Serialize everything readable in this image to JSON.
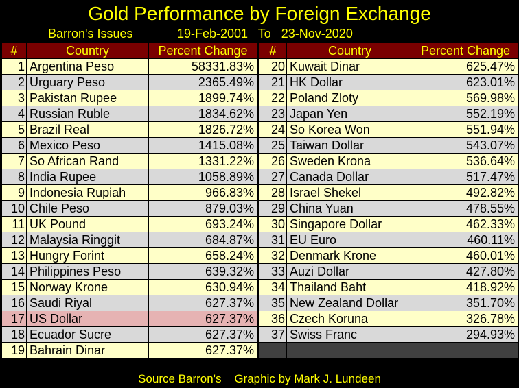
{
  "title": "Gold Performance by Foreign Exchange",
  "subtitle_left": "Barron's Issues",
  "subtitle_right": "19-Feb-2001   To   23-Nov-2020",
  "footer": "Source Barron's    Graphic by Mark J. Lundeen",
  "headers": {
    "num": "#",
    "country": "Country",
    "change": "Percent Change"
  },
  "colors": {
    "background": "#000000",
    "title_text": "#ffff00",
    "header_bg": "#7a0000",
    "row_odd": "#ffffc8",
    "row_even": "#d9d9d9",
    "highlight": "#e6b3b3"
  },
  "left_rows": [
    {
      "num": "1",
      "country": "Argentina Peso",
      "change": "58331.83%"
    },
    {
      "num": "2",
      "country": "Urguary Peso",
      "change": "2365.49%"
    },
    {
      "num": "3",
      "country": "Pakistan Rupee",
      "change": "1899.74%"
    },
    {
      "num": "4",
      "country": "Russian Ruble",
      "change": "1834.62%"
    },
    {
      "num": "5",
      "country": "Brazil Real",
      "change": "1826.72%"
    },
    {
      "num": "6",
      "country": "Mexico Peso",
      "change": "1415.08%"
    },
    {
      "num": "7",
      "country": "So African Rand",
      "change": "1331.22%"
    },
    {
      "num": "8",
      "country": "India Rupee",
      "change": "1058.89%"
    },
    {
      "num": "9",
      "country": "Indonesia Rupiah",
      "change": "966.83%"
    },
    {
      "num": "10",
      "country": "Chile Peso",
      "change": "879.03%"
    },
    {
      "num": "11",
      "country": "UK Pound",
      "change": "693.24%"
    },
    {
      "num": "12",
      "country": "Malaysia Ringgit",
      "change": "684.87%"
    },
    {
      "num": "13",
      "country": "Hungry Forint",
      "change": "658.24%"
    },
    {
      "num": "14",
      "country": "Philippines Peso",
      "change": "639.32%"
    },
    {
      "num": "15",
      "country": "Norway Krone",
      "change": "630.94%"
    },
    {
      "num": "16",
      "country": "Saudi Riyal",
      "change": "627.37%"
    },
    {
      "num": "17",
      "country": "US Dollar",
      "change": "627.37%",
      "highlight": true
    },
    {
      "num": "18",
      "country": "Ecuador Sucre",
      "change": "627.37%"
    },
    {
      "num": "19",
      "country": "Bahrain Dinar",
      "change": "627.37%"
    }
  ],
  "right_rows": [
    {
      "num": "20",
      "country": "Kuwait Dinar",
      "change": "625.47%"
    },
    {
      "num": "21",
      "country": "HK Dollar",
      "change": "623.01%"
    },
    {
      "num": "22",
      "country": "Poland Zloty",
      "change": "569.98%"
    },
    {
      "num": "23",
      "country": "Japan Yen",
      "change": "552.19%"
    },
    {
      "num": "24",
      "country": "So Korea Won",
      "change": "551.94%"
    },
    {
      "num": "25",
      "country": "Taiwan Dollar",
      "change": "543.07%"
    },
    {
      "num": "26",
      "country": "Sweden Krona",
      "change": "536.64%"
    },
    {
      "num": "27",
      "country": "Canada Dollar",
      "change": "517.47%"
    },
    {
      "num": "28",
      "country": "Israel Shekel",
      "change": "492.82%"
    },
    {
      "num": "29",
      "country": "China Yuan",
      "change": "478.55%"
    },
    {
      "num": "30",
      "country": "Singapore Dollar",
      "change": "462.33%"
    },
    {
      "num": "31",
      "country": "EU Euro",
      "change": "460.11%"
    },
    {
      "num": "32",
      "country": "Denmark Krone",
      "change": "460.01%"
    },
    {
      "num": "33",
      "country": "Auzi Dollar",
      "change": "427.80%"
    },
    {
      "num": "34",
      "country": "Thailand Baht",
      "change": "418.92%"
    },
    {
      "num": "35",
      "country": "New Zealand Dollar",
      "change": "351.70%"
    },
    {
      "num": "36",
      "country": "Czech Koruna",
      "change": "326.78%"
    },
    {
      "num": "37",
      "country": "Swiss Franc",
      "change": "294.93%"
    }
  ]
}
